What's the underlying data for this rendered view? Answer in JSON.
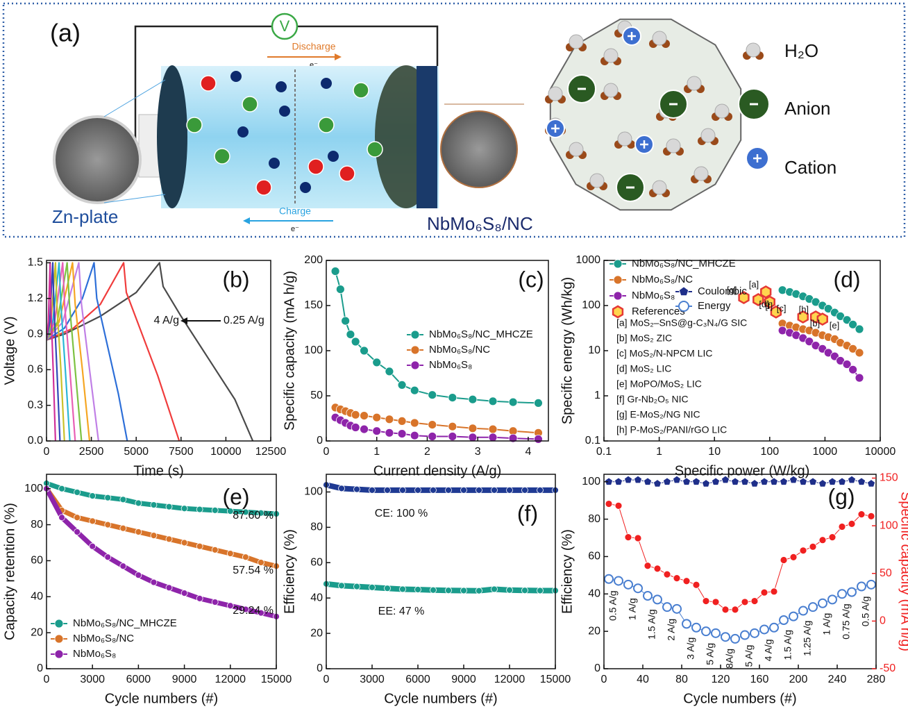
{
  "panel_a": {
    "label": "(a)",
    "voltmeter": "V",
    "discharge": "Discharge",
    "discharge_carrier": "e⁻",
    "charge": "Charge",
    "charge_carrier": "e⁻",
    "anode": "Zn-plate",
    "cathode": "NbMo₆S₈/NC",
    "legend": [
      "H₂O",
      "Anion",
      "Cation"
    ]
  },
  "chart_data": [
    {
      "type": "line",
      "panel_label": "(b)",
      "xlabel": "Time (s)",
      "ylabel": "Voltage (V)",
      "xlim": [
        0,
        12500
      ],
      "xticks": [
        0,
        2500,
        5000,
        7500,
        10000,
        12500
      ],
      "ylim": [
        0,
        1.52
      ],
      "yticks": [
        {
          "value": 0,
          "label": "0.0"
        },
        0.3,
        0.6,
        0.9,
        1.2,
        1.5
      ],
      "annotations": [
        "4 A/g",
        "0.25 A/g"
      ],
      "series": [
        {
          "color": "#4a4a4a",
          "x": [
            0,
            1000,
            3000,
            5000,
            6300,
            6500,
            7500,
            9000,
            10500,
            11500
          ],
          "values": [
            0.85,
            0.9,
            1.05,
            1.25,
            1.5,
            1.3,
            1.05,
            0.7,
            0.35,
            0
          ]
        },
        {
          "color": "#f03c3c",
          "x": [
            0,
            1500,
            3000,
            4300,
            4450,
            5200,
            6200,
            7400
          ],
          "values": [
            0.85,
            0.95,
            1.15,
            1.5,
            1.25,
            0.95,
            0.55,
            0
          ]
        },
        {
          "color": "#2d6fd8",
          "x": [
            0,
            1000,
            2000,
            2650,
            2800,
            3400,
            4000,
            4500
          ],
          "values": [
            0.85,
            0.95,
            1.2,
            1.5,
            1.2,
            0.8,
            0.4,
            0
          ]
        },
        {
          "color": "#c07fe6",
          "x": [
            0,
            900,
            1800,
            1950,
            2400,
            2900
          ],
          "values": [
            0.85,
            1.0,
            1.5,
            1.15,
            0.6,
            0
          ]
        },
        {
          "color": "#f5a623",
          "x": [
            0,
            700,
            1450,
            1600,
            2000,
            2400
          ],
          "values": [
            0.85,
            1.0,
            1.5,
            1.15,
            0.6,
            0
          ]
        },
        {
          "color": "#7dc242",
          "x": [
            0,
            600,
            1150,
            1280,
            1600,
            1950
          ],
          "values": [
            0.85,
            1.0,
            1.5,
            1.15,
            0.6,
            0
          ]
        },
        {
          "color": "#e85fb5",
          "x": [
            0,
            450,
            900,
            1010,
            1300,
            1600
          ],
          "values": [
            0.85,
            1.0,
            1.5,
            1.15,
            0.6,
            0
          ]
        },
        {
          "color": "#2bb6d6",
          "x": [
            0,
            350,
            700,
            800,
            1050,
            1300
          ],
          "values": [
            0.85,
            1.0,
            1.5,
            1.15,
            0.6,
            0
          ]
        },
        {
          "color": "#c9c12a",
          "x": [
            0,
            250,
            500,
            580,
            800,
            1000
          ],
          "values": [
            0.85,
            1.0,
            1.5,
            1.15,
            0.6,
            0
          ]
        },
        {
          "color": "#3047b8",
          "x": [
            0,
            180,
            350,
            410,
            580,
            750
          ],
          "values": [
            0.85,
            1.0,
            1.5,
            1.15,
            0.6,
            0
          ]
        },
        {
          "color": "#d0309a",
          "x": [
            0,
            100,
            200,
            240,
            370,
            500
          ],
          "values": [
            0.85,
            1.0,
            1.5,
            1.15,
            0.6,
            0
          ]
        }
      ]
    },
    {
      "type": "line",
      "panel_label": "(c)",
      "xlabel": "Current density (A/g)",
      "ylabel": "Specific capacity (mA h/g)",
      "xlim": [
        0,
        4.4
      ],
      "xticks": [
        0,
        1,
        2,
        3,
        4
      ],
      "ylim": [
        0,
        200
      ],
      "yticks": [
        0,
        50,
        100,
        150,
        200
      ],
      "x": [
        0.18,
        0.28,
        0.38,
        0.48,
        0.58,
        0.75,
        1.0,
        1.25,
        1.5,
        1.75,
        2.1,
        2.5,
        2.9,
        3.3,
        3.7,
        4.2
      ],
      "series": [
        {
          "name": "NbMo₆S₈/NC_MHCZE",
          "color": "#1a9c8c",
          "marker": "circle",
          "values": [
            188,
            168,
            133,
            118,
            110,
            100,
            87,
            77,
            62,
            56,
            51,
            48,
            46,
            44,
            43,
            42
          ]
        },
        {
          "name": "NbMo₆S₈/NC",
          "color": "#d8742a",
          "marker": "circle",
          "values": [
            37,
            35,
            33,
            31,
            29,
            28,
            26,
            24,
            22,
            20,
            18,
            16,
            14,
            13,
            11,
            9
          ]
        },
        {
          "name": "NbMo₆S₈",
          "color": "#8e24aa",
          "marker": "circle",
          "values": [
            26,
            23,
            20,
            17,
            15,
            13,
            11,
            9,
            8,
            6,
            5,
            5,
            4,
            4,
            3,
            2
          ]
        }
      ]
    },
    {
      "type": "line",
      "panel_label": "(d)",
      "xlabel": "Specific power (W/kg)",
      "ylabel": "Specific energy (Wh/kg)",
      "xscale": "log",
      "yscale": "log",
      "xlim": [
        0.1,
        10000
      ],
      "xticks": [
        0.1,
        1,
        10,
        100,
        1000,
        10000
      ],
      "ylim": [
        0.1,
        1000
      ],
      "yticks": [
        0.1,
        1,
        10,
        100,
        1000
      ],
      "series": [
        {
          "name": "NbMo₆S₈/NC_MHCZE",
          "color": "#1a9c8c",
          "marker": "circle",
          "x": [
            170,
            230,
            300,
            400,
            520,
            680,
            900,
            1150,
            1500,
            1900,
            2500,
            3200,
            4200
          ],
          "values": [
            220,
            200,
            180,
            160,
            140,
            120,
            100,
            85,
            70,
            58,
            48,
            38,
            30
          ]
        },
        {
          "name": "NbMo₆S₈/NC",
          "color": "#d8742a",
          "marker": "circle",
          "x": [
            170,
            230,
            300,
            400,
            520,
            680,
            900,
            1150,
            1500,
            1900,
            2500,
            3200,
            4200
          ],
          "values": [
            40,
            36,
            33,
            30,
            28,
            25,
            22,
            20,
            18,
            15,
            13,
            11,
            9
          ]
        },
        {
          "name": "NbMo₆S₈",
          "color": "#8e24aa",
          "marker": "circle",
          "x": [
            170,
            230,
            300,
            400,
            520,
            680,
            900,
            1150,
            1500,
            1900,
            2500,
            3200,
            4200
          ],
          "values": [
            28,
            25,
            22,
            19,
            16,
            13,
            11,
            9,
            7.5,
            6,
            5,
            3.8,
            2.5
          ]
        },
        {
          "name": "References",
          "color": "#e53935",
          "marker": "hexagon",
          "line": false,
          "x": [
            34,
            62,
            85,
            100,
            130,
            400,
            680,
            900
          ],
          "values": [
            150,
            135,
            200,
            120,
            72,
            56,
            56,
            50
          ],
          "point_labels": [
            "[g]",
            "[f]",
            "[a]",
            "[c]",
            "[d]",
            "[b]",
            "[h]",
            "[e]"
          ]
        }
      ],
      "notes": [
        "[a] MoS₂–SnS@g-C₃N₄/G SIC",
        "[b] MoS₂ ZIC",
        "[c] MoS₂/N-NPCM LIC",
        "[d] MoS₂ LIC",
        "[e] MoPO/MoS₂ LIC",
        "[f] Gr-Nb₂O₅ NIC",
        "[g] E-MoS₂/NG NIC",
        "[h] P-MoS₂/PANI/rGO LIC"
      ]
    },
    {
      "type": "line",
      "panel_label": "(e)",
      "xlabel": "Cycle numbers (#)",
      "ylabel": "Capacity retention (%)",
      "xlim": [
        0,
        15000
      ],
      "xticks": [
        0,
        3000,
        6000,
        9000,
        12000,
        15000
      ],
      "ylim": [
        0,
        108
      ],
      "yticks": [
        0,
        20,
        40,
        60,
        80,
        100
      ],
      "annotations": [
        "87.60 %",
        "57.54 %",
        "29.24 %"
      ],
      "x": [
        0,
        1000,
        2000,
        3000,
        4000,
        5000,
        6000,
        7000,
        8000,
        9000,
        10000,
        11000,
        12000,
        13000,
        14000,
        15000
      ],
      "series": [
        {
          "name": "NbMo₆S₈/NC_MHCZE",
          "color": "#1a9c8c",
          "marker": "circle",
          "values": [
            103,
            100,
            98,
            96,
            95,
            94,
            92,
            91,
            90,
            89,
            88.5,
            88,
            87.5,
            87,
            86.5,
            86
          ]
        },
        {
          "name": "NbMo₆S₈/NC",
          "color": "#d8742a",
          "marker": "circle",
          "values": [
            100,
            88,
            84,
            82,
            80,
            78,
            76,
            74,
            72,
            70,
            68,
            66,
            64,
            62,
            59,
            57
          ]
        },
        {
          "name": "NbMo₆S₈",
          "color": "#8e24aa",
          "marker": "circle",
          "values": [
            100,
            84,
            76,
            68,
            62,
            57,
            52,
            48,
            45,
            42,
            39,
            37,
            35,
            33,
            31,
            29
          ]
        }
      ]
    },
    {
      "type": "line",
      "panel_label": "(f)",
      "xlabel": "Cycle numbers (#)",
      "ylabel": "Efficiency (%)",
      "xlim": [
        0,
        15000
      ],
      "xticks": [
        0,
        3000,
        6000,
        9000,
        12000,
        15000
      ],
      "ylim": [
        0,
        110
      ],
      "yticks": [
        0,
        20,
        40,
        60,
        80,
        100
      ],
      "annotations": [
        "CE: 100 %",
        "EE: 47 %"
      ],
      "x": [
        0,
        1000,
        2000,
        3000,
        4000,
        5000,
        6000,
        7000,
        8000,
        9000,
        10000,
        11000,
        12000,
        13000,
        14000,
        15000
      ],
      "series": [
        {
          "color": "#1f3a93",
          "marker": "circle",
          "values": [
            104,
            102,
            101.5,
            101,
            101,
            101,
            101,
            101,
            101,
            101,
            101,
            101,
            101,
            101,
            101,
            101
          ]
        },
        {
          "color": "#1a9c8c",
          "marker": "circle",
          "values": [
            48,
            47,
            46.5,
            46,
            45.5,
            45,
            44.8,
            44.5,
            44.3,
            44.2,
            44.1,
            45,
            44.5,
            44.3,
            44.2,
            44.2
          ]
        }
      ]
    },
    {
      "type": "line",
      "panel_label": "(g)",
      "xlabel": "Cycle numbers (#)",
      "ylabel": "Efficiency (%)",
      "y2label": "Specific capacity (mA h/g)",
      "xlim": [
        0,
        280
      ],
      "xticks": [
        0,
        40,
        80,
        120,
        160,
        200,
        240,
        280
      ],
      "ylim": [
        0,
        104
      ],
      "yticks": [
        0,
        20,
        40,
        60,
        80,
        100
      ],
      "y2lim": [
        -50,
        154
      ],
      "y2ticks": [
        -50,
        0,
        50,
        100,
        150
      ],
      "rate_labels": [
        "0.5 A/g",
        "1 A/g",
        "1.5 A/g",
        "2 A/g",
        "3 A/g",
        "5 A/g",
        "8A/g",
        "5 A/g",
        "4 A/g",
        "1.5 A/g",
        "1.25 A/g",
        "1 A/g",
        "0.75 A/g",
        "0.5 A/g"
      ],
      "x": [
        5,
        15,
        25,
        35,
        45,
        55,
        65,
        75,
        85,
        95,
        105,
        115,
        125,
        135,
        145,
        155,
        165,
        175,
        185,
        195,
        205,
        215,
        225,
        235,
        245,
        255,
        265,
        275
      ],
      "series": [
        {
          "name": "Coulombic",
          "color": "#1f2f8a",
          "marker": "pentagon",
          "values": [
            100,
            100,
            101,
            101,
            100,
            99,
            100,
            101,
            100,
            100,
            99,
            100,
            101,
            100,
            100,
            99,
            100,
            100,
            100,
            101,
            100,
            100,
            99,
            100,
            100,
            101,
            100,
            99
          ]
        },
        {
          "name": "Energy",
          "color": "#4a7fd0",
          "marker": "open-circle",
          "values": [
            48,
            47,
            45,
            43,
            39,
            37,
            33,
            32,
            24,
            22,
            20,
            19,
            17,
            16,
            18,
            19,
            21,
            22,
            26,
            28,
            31,
            33,
            35,
            37,
            40,
            41,
            44,
            45
          ]
        },
        {
          "color": "#f02020",
          "marker": "circle",
          "axis": "y2",
          "values": [
            123,
            121,
            88,
            87,
            58,
            55,
            49,
            45,
            42,
            38,
            21,
            20,
            12,
            12,
            20,
            21,
            30,
            31,
            64,
            67,
            74,
            78,
            85,
            88,
            99,
            102,
            112,
            110
          ]
        }
      ]
    }
  ]
}
